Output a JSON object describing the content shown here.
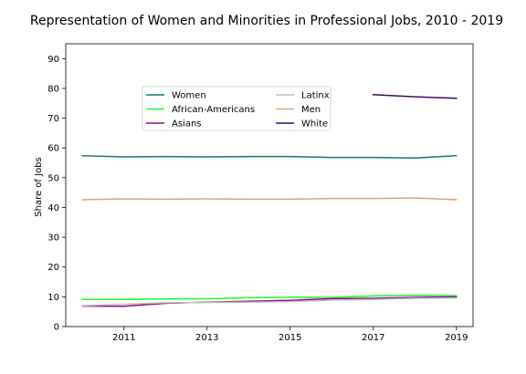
{
  "chart_data": {
    "type": "line",
    "title": "Representation of Women and Minorities in Professional Jobs, 2010 - 2019",
    "xlabel": "",
    "ylabel": "Share of Jobs",
    "xlim": [
      2009.6,
      2019.4
    ],
    "ylim": [
      0,
      95
    ],
    "x_ticks": [
      2011,
      2013,
      2015,
      2017,
      2019
    ],
    "y_ticks": [
      0,
      10,
      20,
      30,
      40,
      50,
      60,
      70,
      80,
      90
    ],
    "grid": false,
    "legend": {
      "placement": "upper-center",
      "columns": 2
    },
    "series": [
      {
        "name": "Women",
        "color": "#0d7a72",
        "x": [
          2010,
          2011,
          2012,
          2013,
          2014,
          2015,
          2016,
          2017,
          2018,
          2019
        ],
        "y": [
          57.4,
          57.0,
          57.1,
          57.0,
          57.1,
          57.1,
          56.8,
          56.8,
          56.6,
          57.4
        ]
      },
      {
        "name": "African-Americans",
        "color": "#1dff1d",
        "x": [
          2010,
          2011,
          2012,
          2013,
          2014,
          2015,
          2016,
          2017,
          2018,
          2019
        ],
        "y": [
          9.1,
          9.1,
          9.3,
          9.3,
          9.7,
          9.8,
          9.8,
          10.3,
          10.5,
          10.4
        ]
      },
      {
        "name": "Asians",
        "color": "#8b0a8b",
        "x": [
          2010,
          2011,
          2012,
          2013,
          2014,
          2015,
          2016,
          2017,
          2018,
          2019
        ],
        "y": [
          6.9,
          6.8,
          7.8,
          8.2,
          8.5,
          8.8,
          9.4,
          9.5,
          9.8,
          10.0
        ]
      },
      {
        "name": "Latinx",
        "color": "#bdbdbd",
        "x": [
          2010,
          2011,
          2012,
          2013,
          2014,
          2015,
          2016,
          2017,
          2018,
          2019
        ],
        "y": [
          7.0,
          7.5,
          8.0,
          8.1,
          8.2,
          8.4,
          8.9,
          9.1,
          9.5,
          9.6
        ]
      },
      {
        "name": "Men",
        "color": "#e4a07e",
        "x": [
          2010,
          2011,
          2012,
          2013,
          2014,
          2015,
          2016,
          2017,
          2018,
          2019
        ],
        "y": [
          42.6,
          42.9,
          42.8,
          42.9,
          42.8,
          42.8,
          43.0,
          43.0,
          43.2,
          42.6
        ]
      },
      {
        "name": "White",
        "color": "#3d0a6e",
        "x": [
          2017,
          2018,
          2019
        ],
        "y": [
          77.9,
          77.2,
          76.7
        ]
      }
    ]
  }
}
